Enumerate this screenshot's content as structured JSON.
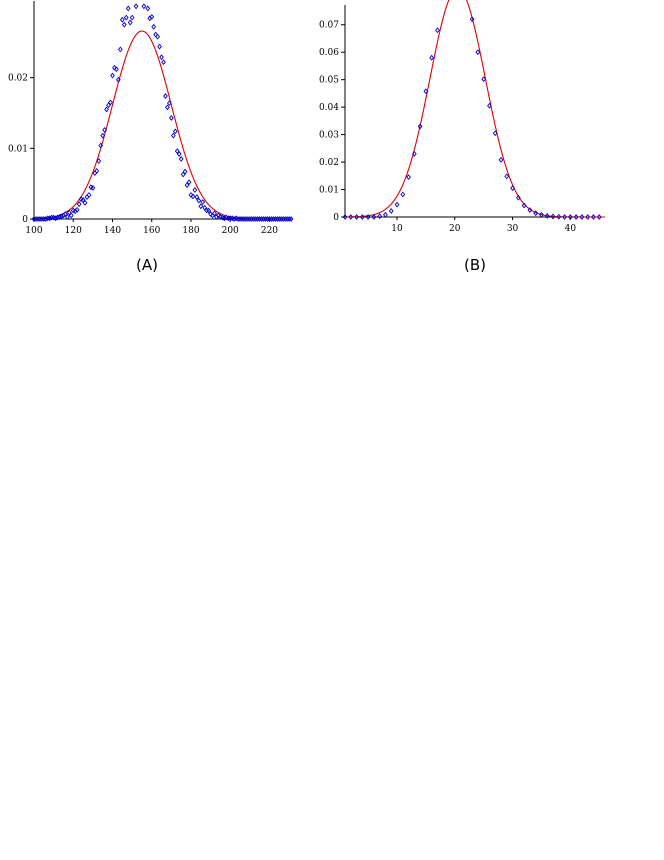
{
  "chart_data": [
    {
      "type": "scatter",
      "panel_label": "(A)",
      "xlim": [
        100,
        232
      ],
      "ylim": [
        0,
        0.03
      ],
      "x_ticks": [
        100,
        120,
        140,
        160,
        180,
        200,
        220
      ],
      "x_tick_labels": [
        "100",
        "120",
        "140",
        "160",
        "180",
        "200",
        "220"
      ],
      "y_ticks": [
        0,
        0.01,
        0.02
      ],
      "y_tick_labels": [
        "0",
        "0.01",
        "0.02"
      ],
      "fit_curve": {
        "type": "gaussian",
        "mean": 155,
        "sd": 15,
        "color": "#dd0000"
      },
      "marker_color": "#0000cc",
      "series": [
        {
          "x": [
            100,
            101,
            102,
            103,
            104,
            105,
            106,
            107,
            108,
            109,
            110,
            111,
            112,
            113,
            114,
            115,
            116,
            117,
            118,
            119,
            120,
            121,
            122,
            123,
            124,
            125,
            126,
            127,
            128,
            129,
            130,
            131,
            132,
            133,
            134,
            135,
            136,
            137,
            138,
            139,
            140,
            141,
            142,
            143,
            144,
            145,
            146,
            147,
            148,
            149,
            150,
            152,
            156,
            158,
            159,
            160,
            161,
            162,
            163,
            164,
            165,
            166,
            167,
            168,
            169,
            170,
            171,
            172,
            173,
            174,
            175,
            176,
            177,
            178,
            179,
            180,
            181,
            182,
            183,
            184,
            185,
            186,
            187,
            188,
            189,
            190,
            191,
            192,
            193,
            194,
            195,
            196,
            197,
            198,
            199,
            200,
            201,
            202,
            203,
            204,
            205,
            206,
            207,
            208,
            209,
            210,
            211,
            212,
            213,
            214,
            215,
            216,
            217,
            218,
            219,
            220,
            221,
            222,
            223,
            224,
            225,
            226,
            227,
            228,
            229,
            230,
            231
          ],
          "y": [
            0,
            0,
            0,
            0,
            0,
            0,
            0,
            0.0001,
            0.0001,
            0.0002,
            0.0002,
            0.0001,
            0.0002,
            0.0003,
            0.0004,
            0.0005,
            0.0007,
            0.0003,
            0.0009,
            0.0005,
            0.0012,
            0.0011,
            0.0013,
            0.0021,
            0.0028,
            0.0027,
            0.0023,
            0.0031,
            0.0034,
            0.0045,
            0.0044,
            0.0065,
            0.0068,
            0.0082,
            0.0104,
            0.0118,
            0.0126,
            0.0155,
            0.0161,
            0.0165,
            0.0203,
            0.0214,
            0.0212,
            0.0197,
            0.024,
            0.0282,
            0.0275,
            0.0285,
            0.0298,
            0.0278,
            0.0285,
            0.0301,
            0.0301,
            0.0298,
            0.0284,
            0.0286,
            0.0272,
            0.0261,
            0.0258,
            0.0244,
            0.0229,
            0.0222,
            0.0174,
            0.0158,
            0.0164,
            0.0143,
            0.0118,
            0.0124,
            0.0096,
            0.0092,
            0.0085,
            0.0063,
            0.0067,
            0.0048,
            0.0052,
            0.0034,
            0.0032,
            0.0041,
            0.0031,
            0.0026,
            0.0018,
            0.0024,
            0.0016,
            0.0012,
            0.0012,
            0.0007,
            0.0005,
            0.0008,
            0.0003,
            0.0005,
            0.0003,
            0.0002,
            0.0001,
            0.0002,
            0.0001,
            0.0001,
            0.0001,
            0,
            0.0001,
            0,
            0,
            0,
            0,
            0,
            0,
            0,
            0,
            0,
            0,
            0,
            0,
            0,
            0,
            0,
            0,
            0,
            0,
            0,
            0,
            0,
            0,
            0,
            0,
            0,
            0,
            0,
            0
          ]
        }
      ]
    },
    {
      "type": "scatter",
      "panel_label": "(B)",
      "xlim": [
        1,
        46
      ],
      "ylim": [
        0,
        0.075
      ],
      "x_ticks": [
        10,
        20,
        30,
        40
      ],
      "x_tick_labels": [
        "10",
        "20",
        "30",
        "40"
      ],
      "y_ticks": [
        0,
        0.01,
        0.02,
        0.03,
        0.04,
        0.05,
        0.06,
        0.07
      ],
      "y_tick_labels": [
        "0",
        "0.01",
        "0.02",
        "0.03",
        "0.04",
        "0.05",
        "0.06",
        "0.07"
      ],
      "fit_curve": {
        "type": "gaussian",
        "mean": 20.5,
        "sd": 4.8,
        "color": "#dd0000"
      },
      "marker_color": "#0000cc",
      "series": [
        {
          "x": [
            1,
            2,
            3,
            4,
            5,
            6,
            7,
            8,
            9,
            10,
            11,
            12,
            13,
            14,
            15,
            16,
            17,
            23,
            24,
            25,
            26,
            27,
            28,
            29,
            30,
            31,
            32,
            33,
            34,
            35,
            36,
            37,
            38,
            39,
            40,
            41,
            42,
            43,
            44,
            45
          ],
          "y": [
            0,
            0,
            0,
            0,
            0,
            0,
            0.0003,
            0.0008,
            0.0022,
            0.0045,
            0.0082,
            0.0145,
            0.023,
            0.033,
            0.0458,
            0.058,
            0.068,
            0.072,
            0.06,
            0.0502,
            0.0405,
            0.0305,
            0.0208,
            0.0148,
            0.0105,
            0.007,
            0.0042,
            0.0025,
            0.0014,
            0.0008,
            0.0004,
            0.0002,
            0.0001,
            0,
            0,
            0,
            0,
            0,
            0,
            0
          ]
        }
      ]
    }
  ]
}
